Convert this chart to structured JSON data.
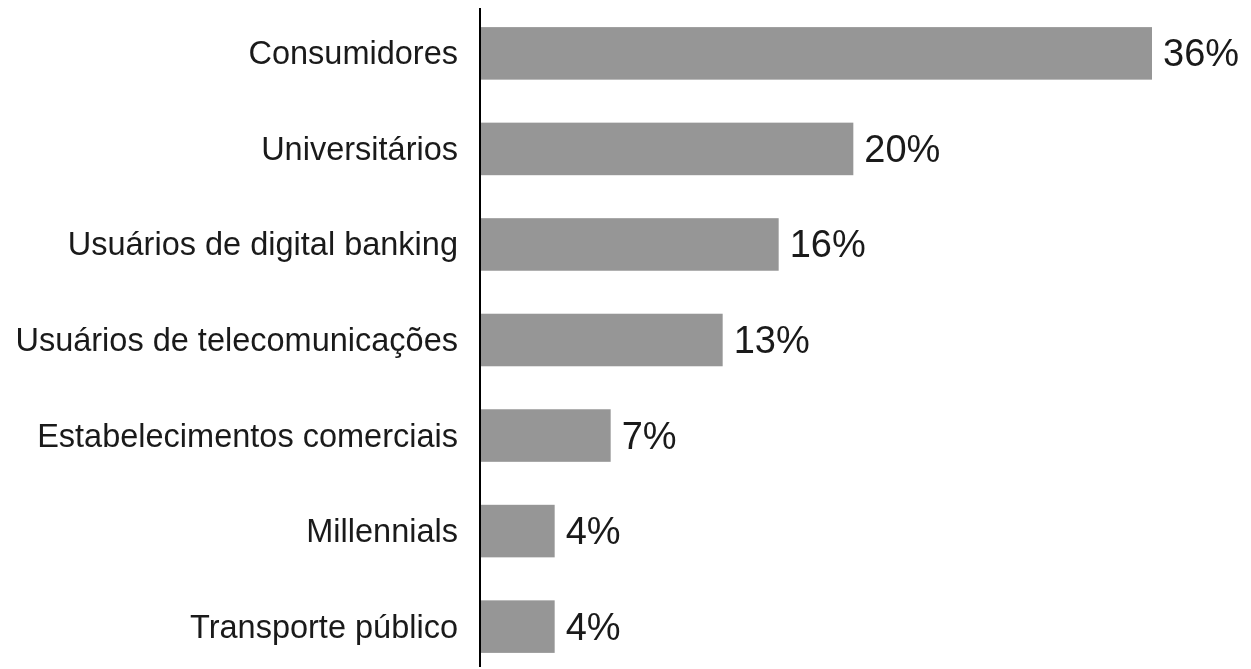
{
  "chart_data": {
    "type": "bar",
    "orientation": "horizontal",
    "categories": [
      "Consumidores",
      "Universitários",
      "Usuários de digital banking",
      "Usuários de telecomunicações",
      "Estabelecimentos comerciais",
      "Millennials",
      "Transporte público"
    ],
    "values": [
      36,
      20,
      16,
      13,
      7,
      4,
      4
    ],
    "value_labels": [
      "36%",
      "20%",
      "16%",
      "13%",
      "7%",
      "4%",
      "4%"
    ],
    "color": "#969696"
  }
}
